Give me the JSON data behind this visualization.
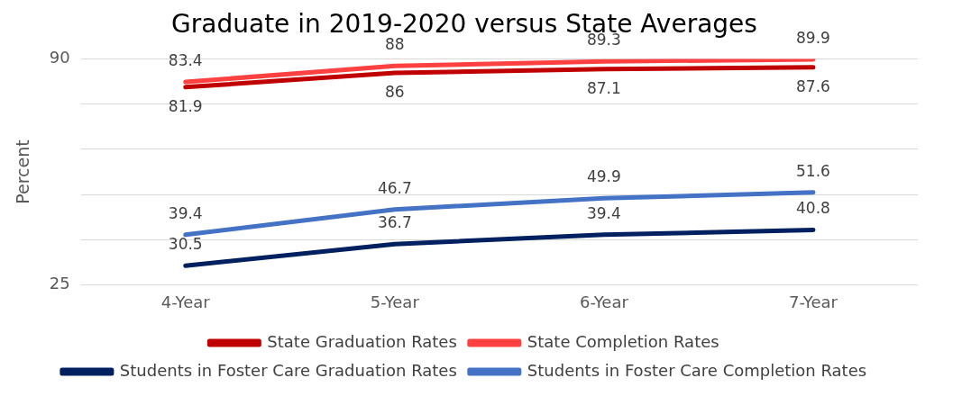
{
  "chart_data": {
    "type": "line",
    "title": "Graduate in 2019-2020 versus State Averages",
    "ylabel": "Percent",
    "categories": [
      "4-Year",
      "5-Year",
      "6-Year",
      "7-Year"
    ],
    "series": [
      {
        "name": "State Graduation Rates",
        "color": "#c00000",
        "values": [
          81.9,
          86,
          87.1,
          87.6
        ]
      },
      {
        "name": "State Completion Rates",
        "color": "#ff4040",
        "values": [
          83.4,
          88,
          89.3,
          89.9
        ]
      },
      {
        "name": "Students in Foster Care Graduation Rates",
        "color": "#002060",
        "values": [
          30.5,
          36.7,
          39.4,
          40.8
        ]
      },
      {
        "name": "Students in Foster Care Completion Rates",
        "color": "#4472c4",
        "values": [
          39.4,
          46.7,
          49.9,
          51.6
        ]
      }
    ],
    "ylim": [
      25,
      90
    ],
    "yticks": [
      25,
      {
        "value": 38,
        "label": null
      },
      {
        "value": 51,
        "label": null
      },
      {
        "value": 64,
        "label": null
      },
      {
        "value": 77,
        "label": null
      },
      90
    ],
    "grid": "y",
    "legend": "bottom",
    "data_labels": true,
    "marker": "none",
    "line_style": "solid"
  }
}
